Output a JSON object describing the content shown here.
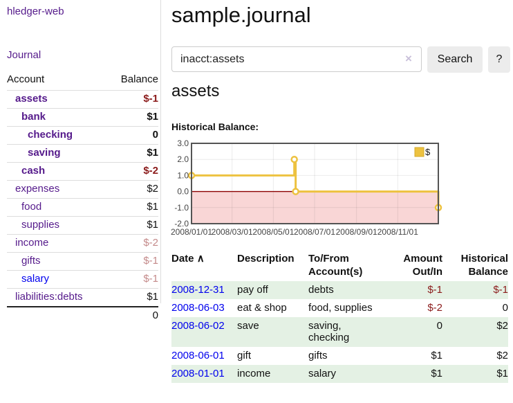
{
  "app": {
    "brand": "hledger-web",
    "nav_journal": "Journal"
  },
  "sidebar": {
    "header": {
      "account": "Account",
      "balance": "Balance"
    },
    "accounts": [
      {
        "name": "assets",
        "balance": "$-1"
      },
      {
        "name": "bank",
        "balance": "$1"
      },
      {
        "name": "checking",
        "balance": "0"
      },
      {
        "name": "saving",
        "balance": "$1"
      },
      {
        "name": "cash",
        "balance": "$-2"
      },
      {
        "name": "expenses",
        "balance": "$2"
      },
      {
        "name": "food",
        "balance": "$1"
      },
      {
        "name": "supplies",
        "balance": "$1"
      },
      {
        "name": "income",
        "balance": "$-2"
      },
      {
        "name": "gifts",
        "balance": "$-1"
      },
      {
        "name": "salary",
        "balance": "$-1"
      },
      {
        "name": "liabilities:debts",
        "balance": "$1"
      }
    ],
    "total": "0"
  },
  "main": {
    "title": "sample.journal",
    "search": {
      "value": "inacct:assets",
      "clear_icon": "×",
      "search_label": "Search",
      "help_label": "?"
    },
    "account_heading": "assets",
    "chart_label": "Historical Balance:"
  },
  "chart_data": {
    "type": "line",
    "step": true,
    "title": "Historical Balance",
    "series": [
      {
        "name": "$",
        "color": "#EDC240",
        "points": [
          [
            "2008-01-01",
            1.0
          ],
          [
            "2008-06-01",
            2.0
          ],
          [
            "2008-06-03",
            0.0
          ],
          [
            "2008-12-31",
            -1.0
          ]
        ]
      }
    ],
    "xlim": [
      "2008-01-01",
      "2008-12-31"
    ],
    "ylim": [
      -2.0,
      3.0
    ],
    "x_ticks": [
      "2008/01/01",
      "2008/03/01",
      "2008/05/01",
      "2008/07/01",
      "2008/09/01",
      "2008/11/01"
    ],
    "y_ticks": [
      3.0,
      2.0,
      1.0,
      0.0,
      -1.0,
      -2.0
    ],
    "legend": {
      "label": "$",
      "position": "top-right"
    },
    "grid": true,
    "colors": {
      "border": "#545454",
      "gridline": "rgba(0,0,0,0.08)",
      "tick_text": "#444444",
      "zero_line": "#8b0000",
      "negative_region": "#f9d6d6",
      "point_fill": "#ffffff"
    }
  },
  "register": {
    "headers": {
      "date": "Date",
      "sort_icon": "∧",
      "description": "Description",
      "tofrom": "To/From Account(s)",
      "amount": "Amount Out/In",
      "balance": "Historical Balance"
    },
    "rows": [
      {
        "date": "2008-12-31",
        "description": "pay off",
        "tofrom": "debts",
        "amount": "$-1",
        "balance": "$-1"
      },
      {
        "date": "2008-06-03",
        "description": "eat & shop",
        "tofrom": "food, supplies",
        "amount": "$-2",
        "balance": "0"
      },
      {
        "date": "2008-06-02",
        "description": "save",
        "tofrom": "saving,\nchecking",
        "amount": "0",
        "balance": "$2"
      },
      {
        "date": "2008-06-01",
        "description": "gift",
        "tofrom": "gifts",
        "amount": "$1",
        "balance": "$2"
      },
      {
        "date": "2008-01-01",
        "description": "income",
        "tofrom": "salary",
        "amount": "$1",
        "balance": "$1"
      }
    ]
  }
}
